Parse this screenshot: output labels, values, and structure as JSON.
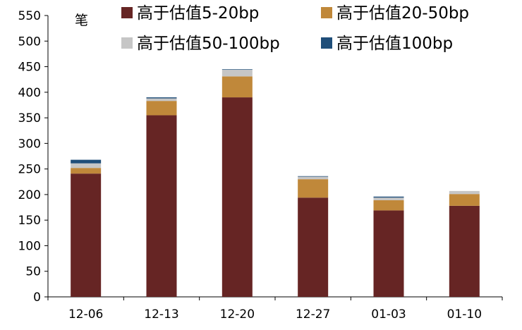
{
  "chart_data": {
    "type": "bar",
    "stacked": true,
    "unit_label": "笔",
    "categories": [
      "12-06",
      "12-13",
      "12-20",
      "12-27",
      "01-03",
      "01-10"
    ],
    "series": [
      {
        "name": "高于估值5-20bp",
        "color": "#662524",
        "values": [
          241,
          355,
          390,
          194,
          169,
          178
        ]
      },
      {
        "name": "高于估值20-50bp",
        "color": "#C0883A",
        "values": [
          11,
          28,
          41,
          36,
          20,
          23
        ]
      },
      {
        "name": "高于估值50-100bp",
        "color": "#C6C6C6",
        "values": [
          9,
          5,
          13,
          5,
          5,
          6
        ]
      },
      {
        "name": "高于估值100bp",
        "color": "#1F4E79",
        "values": [
          7,
          2,
          1,
          1,
          2,
          0
        ]
      }
    ],
    "ylim": [
      0,
      550
    ],
    "yticks": [
      0,
      50,
      100,
      150,
      200,
      250,
      300,
      350,
      400,
      450,
      500,
      550
    ],
    "grid": false,
    "legend_position": "top"
  }
}
